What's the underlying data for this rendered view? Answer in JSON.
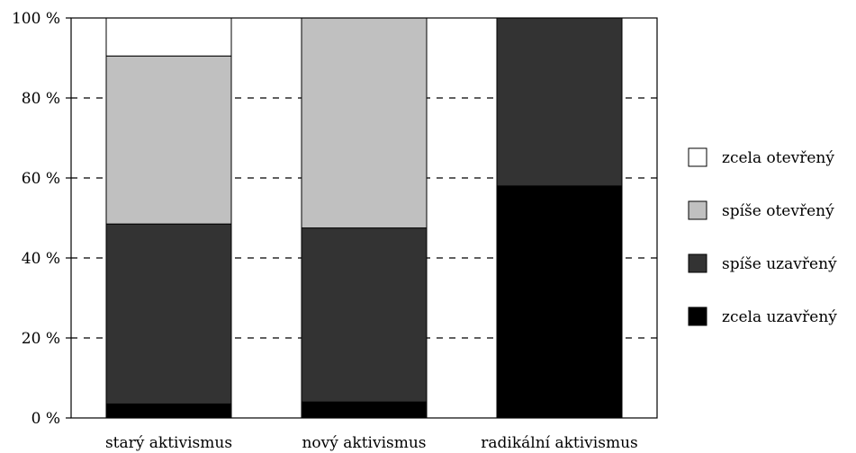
{
  "chart_data": {
    "type": "bar",
    "stacked": true,
    "categories": [
      "starý aktivismus",
      "nový aktivismus",
      "radikální aktivismus"
    ],
    "series": [
      {
        "name": "zcela uzavřený",
        "color": "#000000",
        "values": [
          3.5,
          4,
          58
        ]
      },
      {
        "name": "spíše uzavřený",
        "color": "#333333",
        "values": [
          45,
          43.5,
          42
        ]
      },
      {
        "name": "spíše otevřený",
        "color": "#c0c0c0",
        "values": [
          42,
          52.5,
          0
        ]
      },
      {
        "name": "zcela otevřený",
        "color": "#ffffff",
        "values": [
          9.5,
          0,
          0
        ]
      }
    ],
    "ylim": [
      0,
      100
    ],
    "yticks": [
      0,
      20,
      40,
      60,
      80,
      100
    ],
    "ytick_labels": [
      "0 %",
      "20 %",
      "40 %",
      "60 %",
      "80 %",
      "100 %"
    ],
    "grid": "horizontal dashed",
    "legend": {
      "position": "right",
      "entries": [
        "zcela otevřený",
        "spíše otevřený",
        "spíše uzavřený",
        "zcela uzavřený"
      ]
    }
  }
}
